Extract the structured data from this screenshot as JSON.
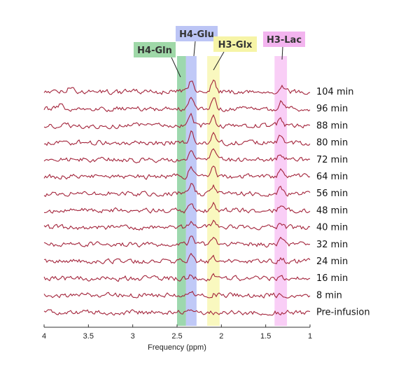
{
  "chart_data": {
    "type": "line",
    "title": "",
    "xlabel": "Frequency (ppm)",
    "ylabel": "",
    "xlim": [
      4,
      1
    ],
    "x_reversed": true,
    "xticks": [
      {
        "value": 4,
        "label": "4"
      },
      {
        "value": 3.5,
        "label": "3.5"
      },
      {
        "value": 3,
        "label": "3"
      },
      {
        "value": 2.5,
        "label": "2.5"
      },
      {
        "value": 2,
        "label": "2"
      },
      {
        "value": 1.5,
        "label": "1.5"
      },
      {
        "value": 1,
        "label": "1"
      }
    ],
    "stacked_offset": true,
    "line_color": "#a3243b",
    "series": [
      {
        "name": "104 min",
        "peaks": [
          {
            "ppm": 2.34,
            "height": 1.0
          },
          {
            "ppm": 2.09,
            "height": 1.0
          },
          {
            "ppm": 1.33,
            "height": 0.55
          },
          {
            "ppm": 3.7,
            "height": 0.45
          }
        ]
      },
      {
        "name": "96 min",
        "peaks": [
          {
            "ppm": 2.34,
            "height": 0.95
          },
          {
            "ppm": 2.09,
            "height": 0.9
          },
          {
            "ppm": 1.33,
            "height": 0.6
          },
          {
            "ppm": 3.8,
            "height": 0.5
          }
        ]
      },
      {
        "name": "88 min",
        "peaks": [
          {
            "ppm": 2.34,
            "height": 0.9
          },
          {
            "ppm": 2.09,
            "height": 0.85
          },
          {
            "ppm": 1.33,
            "height": 0.55
          }
        ]
      },
      {
        "name": "80 min",
        "peaks": [
          {
            "ppm": 2.34,
            "height": 0.85
          },
          {
            "ppm": 2.09,
            "height": 0.8
          },
          {
            "ppm": 1.33,
            "height": 0.5
          }
        ]
      },
      {
        "name": "72 min",
        "peaks": [
          {
            "ppm": 2.34,
            "height": 0.85
          },
          {
            "ppm": 2.09,
            "height": 0.75
          },
          {
            "ppm": 1.33,
            "height": 0.5
          }
        ]
      },
      {
        "name": "64 min",
        "peaks": [
          {
            "ppm": 2.34,
            "height": 0.8
          },
          {
            "ppm": 2.09,
            "height": 0.7
          },
          {
            "ppm": 1.33,
            "height": 0.45
          }
        ]
      },
      {
        "name": "56 min",
        "peaks": [
          {
            "ppm": 2.34,
            "height": 0.75
          },
          {
            "ppm": 2.09,
            "height": 0.65
          },
          {
            "ppm": 1.33,
            "height": 0.45
          }
        ]
      },
      {
        "name": "48 min",
        "peaks": [
          {
            "ppm": 2.34,
            "height": 0.7
          },
          {
            "ppm": 2.09,
            "height": 0.6
          },
          {
            "ppm": 1.33,
            "height": 0.4
          }
        ]
      },
      {
        "name": "40 min",
        "peaks": [
          {
            "ppm": 2.34,
            "height": 0.6
          },
          {
            "ppm": 2.09,
            "height": 0.5
          },
          {
            "ppm": 1.33,
            "height": 0.4
          }
        ]
      },
      {
        "name": "32 min",
        "peaks": [
          {
            "ppm": 2.34,
            "height": 0.55
          },
          {
            "ppm": 2.09,
            "height": 0.4
          },
          {
            "ppm": 1.33,
            "height": 0.35
          }
        ]
      },
      {
        "name": "24 min",
        "peaks": [
          {
            "ppm": 2.34,
            "height": 0.4
          },
          {
            "ppm": 2.09,
            "height": 0.3
          },
          {
            "ppm": 1.33,
            "height": 0.25
          }
        ]
      },
      {
        "name": "16 min",
        "peaks": [
          {
            "ppm": 2.34,
            "height": 0.3
          },
          {
            "ppm": 2.09,
            "height": 0.2
          },
          {
            "ppm": 1.33,
            "height": 0.2
          }
        ]
      },
      {
        "name": "8 min",
        "peaks": [
          {
            "ppm": 2.34,
            "height": 0.15
          },
          {
            "ppm": 2.09,
            "height": 0.1
          },
          {
            "ppm": 1.33,
            "height": 0.1
          }
        ]
      },
      {
        "name": "Pre-infusion",
        "peaks": []
      }
    ],
    "regions": [
      {
        "label": "H4-Gln",
        "from": 2.5,
        "to": 2.4,
        "color": "#4cb86b",
        "label_bg": "#9fd8a8"
      },
      {
        "label": "H4-Glu",
        "from": 2.4,
        "to": 2.28,
        "color": "#8c9cf0",
        "label_bg": "#bcc5f5"
      },
      {
        "label": "H3-Glx",
        "from": 2.16,
        "to": 2.02,
        "color": "#f4f28a",
        "label_bg": "#f6f4a6"
      },
      {
        "label": "H3-Lac",
        "from": 1.4,
        "to": 1.26,
        "color": "#f4a6ee",
        "label_bg": "#f3b4ef"
      }
    ]
  }
}
